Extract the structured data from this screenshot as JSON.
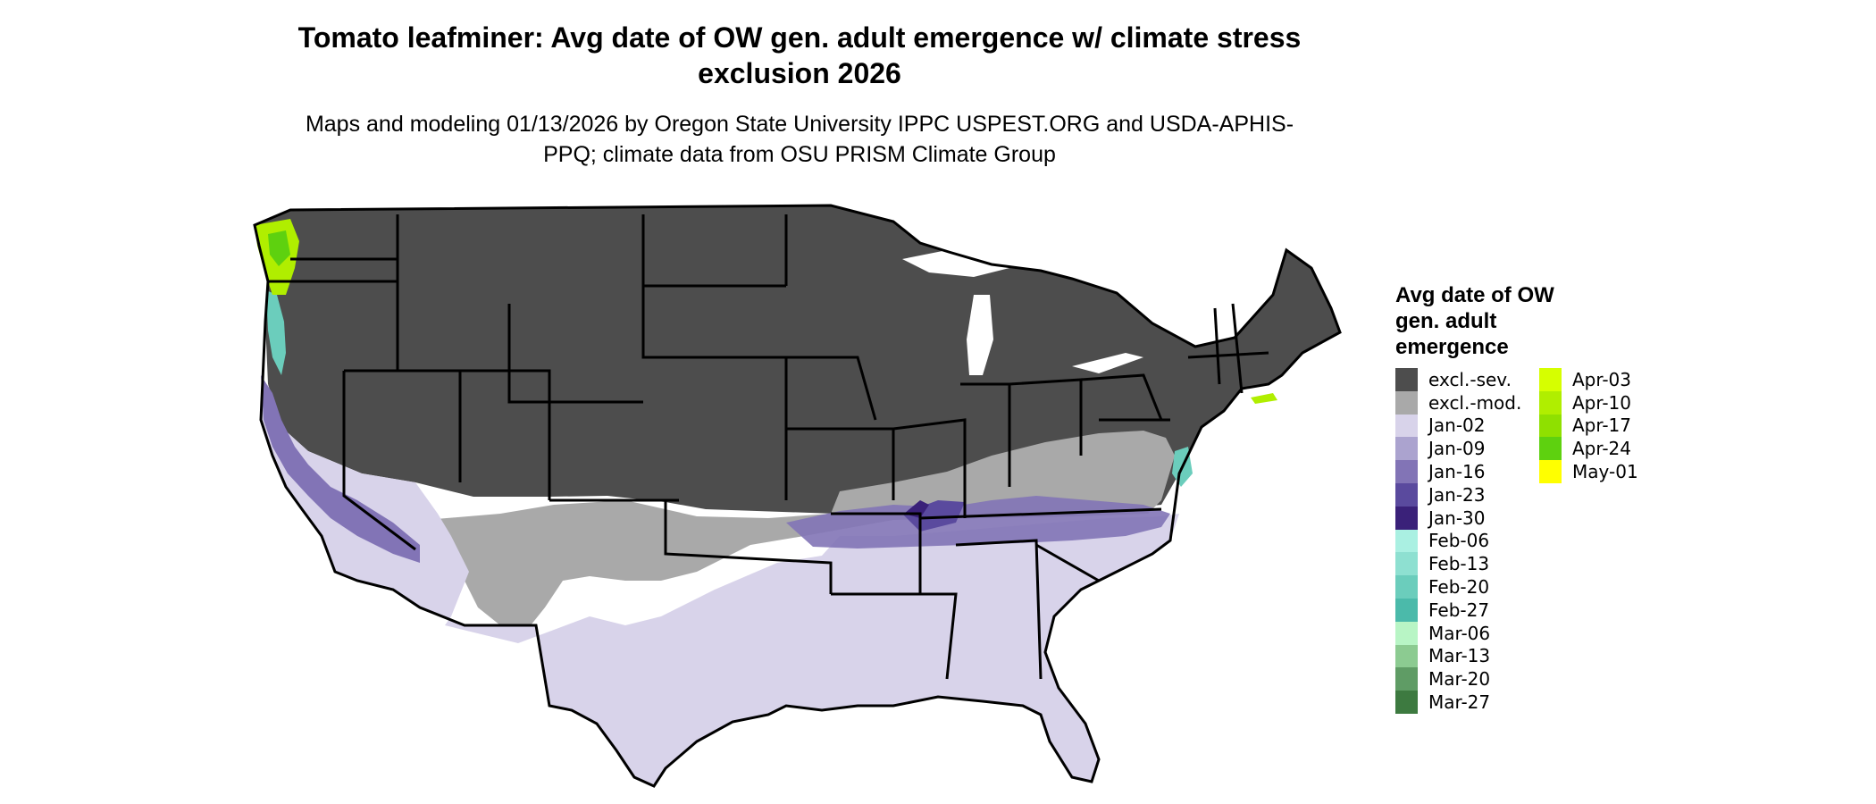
{
  "title": "Tomato leafminer: Avg date of OW gen. adult emergence w/ climate stress exclusion 2026",
  "subtitle": "Maps and modeling 01/13/2026 by Oregon State University IPPC USPEST.ORG and USDA-APHIS-PPQ; climate data from OSU PRISM Climate Group",
  "legend": {
    "title": "Avg date of OW gen. adult emergence",
    "col1": [
      {
        "label": "excl.-sev.",
        "color": "#4d4d4d"
      },
      {
        "label": "excl.-mod.",
        "color": "#a9a9a9"
      },
      {
        "label": "Jan-02",
        "color": "#d8d3ea"
      },
      {
        "label": "Jan-09",
        "color": "#aba3cf"
      },
      {
        "label": "Jan-16",
        "color": "#8274b6"
      },
      {
        "label": "Jan-23",
        "color": "#5a4a9e"
      },
      {
        "label": "Jan-30",
        "color": "#3a2179"
      },
      {
        "label": "Feb-06",
        "color": "#aaf0e2"
      },
      {
        "label": "Feb-13",
        "color": "#8ee0d1"
      },
      {
        "label": "Feb-20",
        "color": "#6bcdbc"
      },
      {
        "label": "Feb-27",
        "color": "#4bbaaa"
      },
      {
        "label": "Mar-06",
        "color": "#b8f5c5"
      },
      {
        "label": "Mar-13",
        "color": "#8ccb91"
      },
      {
        "label": "Mar-20",
        "color": "#5f9c65"
      },
      {
        "label": "Mar-27",
        "color": "#3d7a40"
      }
    ],
    "col2": [
      {
        "label": "Apr-03",
        "color": "#d6ff00"
      },
      {
        "label": "Apr-10",
        "color": "#b0ee00"
      },
      {
        "label": "Apr-17",
        "color": "#8fe000"
      },
      {
        "label": "Apr-24",
        "color": "#5ed10f"
      },
      {
        "label": "May-01",
        "color": "#ffff00"
      }
    ]
  },
  "map": {
    "colors": {
      "excluded_severe": "#4d4d4d",
      "excluded_moderate": "#a9a9a9",
      "jan02": "#d8d3ea",
      "jan09": "#aba3cf",
      "jan16": "#8274b6",
      "jan23": "#5a4a9e",
      "jan30": "#3a2179",
      "feb06": "#aaf0e2",
      "feb20": "#6bcdbc",
      "mar06": "#b8f5c5",
      "apr03": "#d6ff00",
      "apr24": "#5ed10f",
      "borders": "#000000",
      "water": "#ffffff"
    }
  }
}
